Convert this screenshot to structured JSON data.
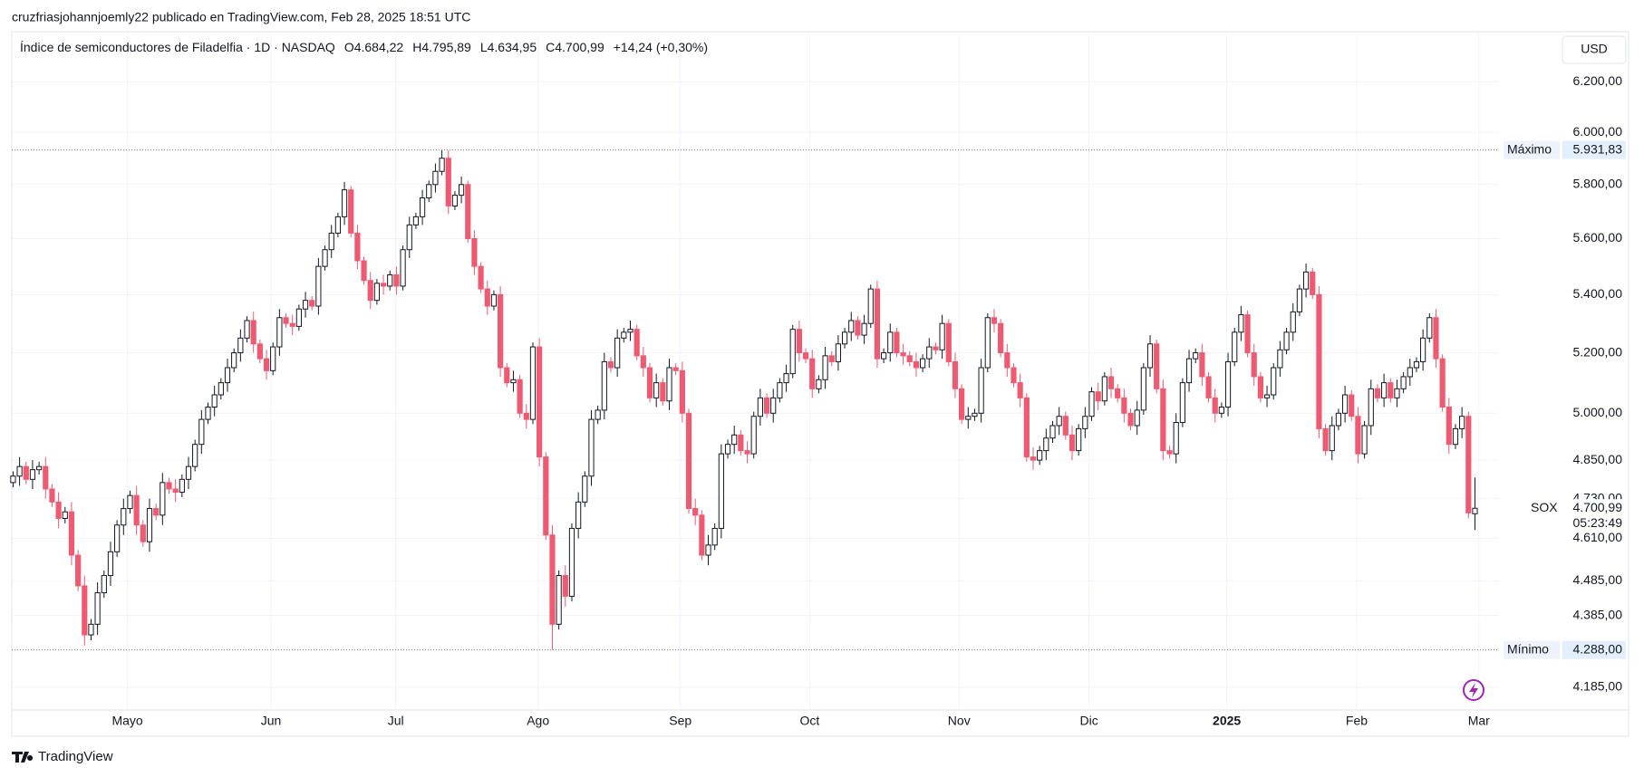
{
  "header": {
    "text": "cruzfriasjohannjoemly22 publicado en TradingView.com, Feb 28, 2025 18:51 UTC"
  },
  "footer": {
    "brand": "TradingView"
  },
  "chart_data": {
    "type": "candlestick",
    "symbol": "Índice de semiconductores de Filadelfia · 1D · NASDAQ",
    "ohlc_labels": [
      "O4.684,22",
      "H4.795,89",
      "L4.634,95",
      "C4.700,99"
    ],
    "change_label": "+14,24 (+0,30%)",
    "currency": "USD",
    "up_color": "#ffffff",
    "up_border": "#131722",
    "down_color": "#ee5a72",
    "log_scale": true,
    "grid": true,
    "ylim": [
      4124,
      6405
    ],
    "yticks": [
      {
        "value": 6200,
        "label": "6.200,00"
      },
      {
        "value": 6000,
        "label": "6.000,00"
      },
      {
        "value": 5800,
        "label": "5.800,00"
      },
      {
        "value": 5600,
        "label": "5.600,00"
      },
      {
        "value": 5400,
        "label": "5.400,00"
      },
      {
        "value": 5200,
        "label": "5.200,00"
      },
      {
        "value": 5000,
        "label": "5.000,00"
      },
      {
        "value": 4850,
        "label": "4.850,00"
      },
      {
        "value": 4730,
        "label": "4.730,00"
      },
      {
        "value": 4610,
        "label": "4.610,00"
      },
      {
        "value": 4485,
        "label": "4.485,00"
      },
      {
        "value": 4385,
        "label": "4.385,00"
      },
      {
        "value": 4185,
        "label": "4.185,00"
      }
    ],
    "xlim": [
      -0.2,
      228.7
    ],
    "xticks": [
      {
        "value": 17.6,
        "label": "Mayo"
      },
      {
        "value": 39.7,
        "label": "Jun"
      },
      {
        "value": 58.9,
        "label": "Jul"
      },
      {
        "value": 80.8,
        "label": "Ago"
      },
      {
        "value": 102.7,
        "label": "Sep"
      },
      {
        "value": 122.6,
        "label": "Oct"
      },
      {
        "value": 145.6,
        "label": "Nov"
      },
      {
        "value": 165.6,
        "label": "Dic"
      },
      {
        "value": 186.8,
        "label": "2025"
      },
      {
        "value": 206.8,
        "label": "Feb"
      },
      {
        "value": 225.6,
        "label": "Mar"
      }
    ],
    "max_label": "Máximo",
    "max_value": 5931.83,
    "max_value_label": "5.931,83",
    "min_label": "Mínimo",
    "min_value": 4288,
    "min_value_label": "4.288,00",
    "last_value_label": "4.700,99",
    "countdown": "05:23:49",
    "series": [
      {
        "name": "SOX",
        "open": [
          4780,
          4800,
          4830,
          4790,
          4820,
          4830,
          4760,
          4720,
          4670,
          4690,
          4560,
          4470,
          4330,
          4360,
          4450,
          4500,
          4570,
          4650,
          4700,
          4740,
          4650,
          4600,
          4700,
          4680,
          4780,
          4760,
          4750,
          4790,
          4830,
          4900,
          4980,
          5020,
          5060,
          5100,
          5150,
          5200,
          5250,
          5310,
          5230,
          5180,
          5140,
          5220,
          5320,
          5300,
          5290,
          5350,
          5380,
          5360,
          5500,
          5560,
          5620,
          5680,
          5780,
          5620,
          5520,
          5450,
          5380,
          5440,
          5430,
          5470,
          5430,
          5560,
          5650,
          5680,
          5750,
          5800,
          5850,
          5900,
          5720,
          5760,
          5800,
          5600,
          5500,
          5420,
          5360,
          5400,
          5150,
          5100,
          5110,
          5000,
          4980,
          5220,
          4860,
          4620,
          4360,
          4500,
          4440,
          4640,
          4720,
          4800,
          4980,
          5010,
          5170,
          5150,
          5250,
          5270,
          5280,
          5190,
          5150,
          5050,
          5100,
          5040,
          5150,
          5140,
          5000,
          4700,
          4680,
          4560,
          4590,
          4640,
          4870,
          4900,
          4930,
          4880,
          4870,
          4990,
          5050,
          5000,
          5050,
          5100,
          5130,
          5280,
          5200,
          5180,
          5080,
          5110,
          5190,
          5170,
          5230,
          5270,
          5310,
          5260,
          5300,
          5420,
          5180,
          5200,
          5270,
          5200,
          5190,
          5170,
          5150,
          5180,
          5220,
          5210,
          5300,
          5170,
          5080,
          4980,
          4990,
          5000,
          5150,
          5320,
          5300,
          5200,
          5150,
          5100,
          5050,
          4860,
          4850,
          4880,
          4920,
          4960,
          4990,
          4930,
          4880,
          4950,
          4990,
          5070,
          5040,
          5120,
          5080,
          5050,
          5000,
          4960,
          5010,
          5150,
          5230,
          5080,
          4880,
          4870,
          4970,
          5100,
          5180,
          5200,
          5120,
          5050,
          5000,
          5020,
          5170,
          5270,
          5330,
          5200,
          5120,
          5050,
          5060,
          5150,
          5210,
          5270,
          5340,
          5420,
          5480,
          5400,
          4950,
          4880,
          4960,
          5000,
          5060,
          4990,
          4870,
          4960,
          5080,
          5050,
          5100,
          5050,
          5080,
          5120,
          5150,
          5170,
          5250,
          5320,
          5180,
          5020,
          4900,
          4950,
          4990,
          4684.22
        ],
        "high": [
          4815,
          4860,
          4845,
          4850,
          4845,
          4860,
          4775,
          4750,
          4705,
          4720,
          4575,
          4500,
          4375,
          4480,
          4515,
          4600,
          4665,
          4730,
          4755,
          4770,
          4665,
          4730,
          4715,
          4810,
          4795,
          4790,
          4805,
          4860,
          4915,
          5010,
          5035,
          5090,
          5115,
          5180,
          5215,
          5280,
          5325,
          5340,
          5245,
          5210,
          5235,
          5350,
          5335,
          5330,
          5365,
          5410,
          5395,
          5530,
          5575,
          5650,
          5695,
          5810,
          5795,
          5650,
          5535,
          5480,
          5455,
          5470,
          5485,
          5500,
          5575,
          5680,
          5695,
          5780,
          5815,
          5880,
          5931.83,
          5930,
          5775,
          5830,
          5815,
          5630,
          5515,
          5450,
          5415,
          5430,
          5165,
          5140,
          5125,
          5030,
          5235,
          5250,
          4875,
          4650,
          4515,
          4530,
          4655,
          4750,
          4815,
          5010,
          5025,
          5200,
          5185,
          5280,
          5285,
          5310,
          5295,
          5220,
          5165,
          5130,
          5115,
          5180,
          5165,
          5170,
          5015,
          4730,
          4695,
          4620,
          4655,
          4900,
          4915,
          4960,
          4945,
          4910,
          5005,
          5080,
          5065,
          5080,
          5115,
          5160,
          5295,
          5310,
          5215,
          5210,
          5125,
          5220,
          5205,
          5260,
          5285,
          5340,
          5325,
          5330,
          5435,
          5450,
          5215,
          5300,
          5285,
          5230,
          5205,
          5200,
          5195,
          5250,
          5235,
          5330,
          5315,
          5200,
          5095,
          5020,
          5015,
          5180,
          5335,
          5350,
          5315,
          5230,
          5165,
          5130,
          5065,
          4890,
          4895,
          4950,
          4975,
          5020,
          5005,
          4960,
          4965,
          5020,
          5085,
          5100,
          5135,
          5150,
          5095,
          5080,
          5015,
          5040,
          5165,
          5260,
          5245,
          5110,
          4895,
          5000,
          5115,
          5210,
          5215,
          5230,
          5135,
          5080,
          5035,
          5200,
          5285,
          5360,
          5345,
          5230,
          5135,
          5090,
          5165,
          5240,
          5285,
          5370,
          5435,
          5510,
          5495,
          5430,
          4965,
          4990,
          5015,
          5090,
          5075,
          5020,
          4975,
          5110,
          5095,
          5130,
          5115,
          5110,
          5135,
          5180,
          5185,
          5280,
          5335,
          5350,
          5195,
          5050,
          4965,
          5020,
          5005,
          4795.89
        ],
        "low": [
          4765,
          4770,
          4775,
          4760,
          4805,
          4730,
          4705,
          4640,
          4655,
          4530,
          4455,
          4300,
          4315,
          4330,
          4435,
          4470,
          4555,
          4620,
          4685,
          4620,
          4585,
          4570,
          4665,
          4650,
          4745,
          4720,
          4735,
          4760,
          4815,
          4870,
          4965,
          4990,
          5045,
          5070,
          5135,
          5170,
          5235,
          5200,
          5165,
          5110,
          5125,
          5190,
          5285,
          5260,
          5275,
          5320,
          5345,
          5330,
          5485,
          5530,
          5605,
          5650,
          5605,
          5490,
          5435,
          5350,
          5365,
          5400,
          5415,
          5400,
          5415,
          5530,
          5635,
          5650,
          5735,
          5770,
          5835,
          5690,
          5705,
          5730,
          5585,
          5470,
          5405,
          5330,
          5345,
          5120,
          5085,
          5070,
          4985,
          4950,
          4965,
          4830,
          4605,
          4288,
          4345,
          4410,
          4425,
          4610,
          4705,
          4770,
          4965,
          4980,
          5135,
          5120,
          5235,
          5240,
          5175,
          5120,
          5035,
          5020,
          5025,
          5010,
          5125,
          4970,
          4685,
          4650,
          4545,
          4530,
          4575,
          4610,
          4855,
          4870,
          4865,
          4840,
          4855,
          4960,
          4985,
          4970,
          5035,
          5070,
          5115,
          5170,
          5165,
          5050,
          5065,
          5080,
          5155,
          5140,
          5215,
          5240,
          5245,
          5230,
          5285,
          5150,
          5165,
          5170,
          5185,
          5160,
          5155,
          5120,
          5135,
          5150,
          5195,
          5180,
          5155,
          5050,
          4965,
          4950,
          4975,
          4970,
          5135,
          5270,
          5185,
          5120,
          5085,
          5020,
          4845,
          4820,
          4835,
          4850,
          4905,
          4930,
          4915,
          4850,
          4865,
          4920,
          4975,
          5010,
          5025,
          5050,
          5035,
          4970,
          4945,
          4930,
          4995,
          5120,
          5065,
          4850,
          4855,
          4840,
          4955,
          5070,
          5165,
          5090,
          5035,
          4970,
          4985,
          4990,
          5155,
          5240,
          5185,
          5090,
          5035,
          5020,
          5045,
          5120,
          5195,
          5240,
          5325,
          5390,
          5385,
          4920,
          4865,
          4850,
          4945,
          4970,
          4975,
          4840,
          4855,
          4930,
          5035,
          5020,
          5035,
          5020,
          5065,
          5090,
          5135,
          5140,
          5235,
          5150,
          5005,
          4870,
          4885,
          4920,
          4670,
          4634.95
        ],
        "close": [
          4800,
          4830,
          4790,
          4820,
          4830,
          4760,
          4720,
          4670,
          4690,
          4560,
          4470,
          4330,
          4360,
          4450,
          4500,
          4570,
          4650,
          4700,
          4740,
          4650,
          4600,
          4700,
          4680,
          4780,
          4760,
          4750,
          4790,
          4830,
          4900,
          4980,
          5020,
          5060,
          5100,
          5150,
          5200,
          5250,
          5310,
          5230,
          5180,
          5140,
          5220,
          5320,
          5300,
          5290,
          5350,
          5380,
          5360,
          5500,
          5560,
          5620,
          5680,
          5780,
          5620,
          5520,
          5450,
          5380,
          5440,
          5430,
          5470,
          5430,
          5560,
          5650,
          5680,
          5750,
          5800,
          5850,
          5900,
          5720,
          5760,
          5800,
          5600,
          5500,
          5420,
          5360,
          5400,
          5150,
          5100,
          5110,
          5000,
          4980,
          5220,
          4860,
          4620,
          4360,
          4500,
          4440,
          4640,
          4720,
          4800,
          4980,
          5010,
          5170,
          5150,
          5250,
          5270,
          5280,
          5190,
          5150,
          5050,
          5100,
          5040,
          5150,
          5140,
          5000,
          4700,
          4680,
          4560,
          4590,
          4640,
          4870,
          4900,
          4930,
          4880,
          4870,
          4990,
          5050,
          5000,
          5050,
          5100,
          5130,
          5280,
          5200,
          5180,
          5080,
          5110,
          5190,
          5170,
          5230,
          5270,
          5310,
          5260,
          5300,
          5420,
          5180,
          5200,
          5270,
          5200,
          5190,
          5170,
          5150,
          5180,
          5220,
          5210,
          5300,
          5170,
          5080,
          4980,
          4990,
          5000,
          5150,
          5320,
          5300,
          5200,
          5150,
          5100,
          5050,
          4860,
          4850,
          4880,
          4920,
          4960,
          4990,
          4930,
          4880,
          4950,
          4990,
          5070,
          5040,
          5120,
          5080,
          5050,
          5000,
          4960,
          5010,
          5150,
          5230,
          5080,
          4880,
          4870,
          4970,
          5100,
          5180,
          5200,
          5120,
          5050,
          5000,
          5020,
          5170,
          5270,
          5330,
          5200,
          5120,
          5050,
          5060,
          5150,
          5210,
          5270,
          5340,
          5420,
          5480,
          5400,
          4950,
          4880,
          4960,
          5000,
          5060,
          4990,
          4870,
          4960,
          5080,
          5050,
          5100,
          5050,
          5080,
          5120,
          5150,
          5170,
          5250,
          5320,
          5180,
          5020,
          4900,
          4950,
          4990,
          4686.75,
          4700.99
        ]
      }
    ]
  }
}
